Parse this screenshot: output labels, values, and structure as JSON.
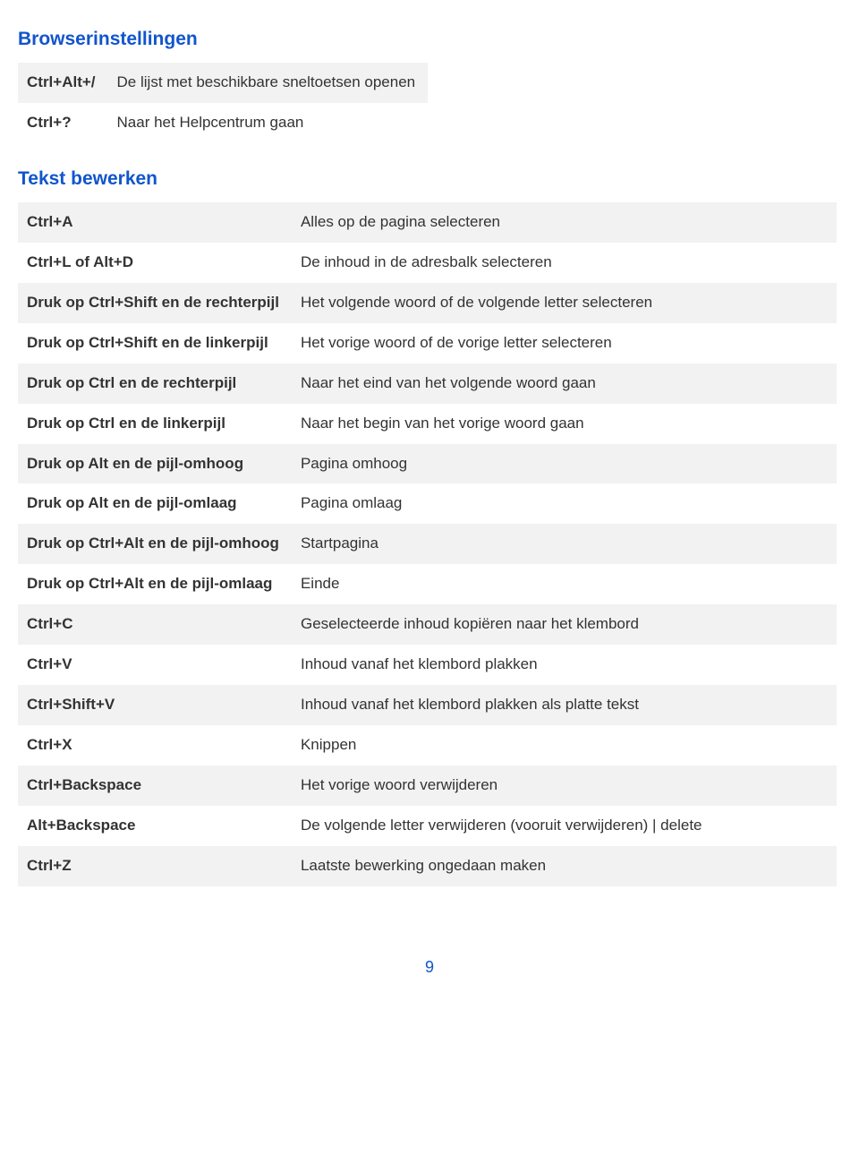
{
  "section1": {
    "title": "Browserinstellingen"
  },
  "table1": {
    "rows": [
      {
        "key": "Ctrl+Alt+/",
        "desc": "De lijst met beschikbare sneltoetsen openen"
      },
      {
        "key": "Ctrl+?",
        "desc": "Naar het Helpcentrum gaan"
      }
    ]
  },
  "section2": {
    "title": "Tekst bewerken"
  },
  "table2": {
    "rows": [
      {
        "key": "Ctrl+A",
        "desc": "Alles op de pagina selecteren"
      },
      {
        "key": "Ctrl+L of Alt+D",
        "desc": "De inhoud in de adresbalk selecteren"
      },
      {
        "key": "Druk op Ctrl+Shift en de rechterpijl",
        "desc": "Het volgende woord of de volgende letter selecteren"
      },
      {
        "key": "Druk op Ctrl+Shift en de linkerpijl",
        "desc": "Het vorige woord of de vorige letter selecteren"
      },
      {
        "key": "Druk op Ctrl en de rechterpijl",
        "desc": "Naar het eind van het volgende woord gaan"
      },
      {
        "key": "Druk op Ctrl en de linkerpijl",
        "desc": "Naar het begin van het vorige woord gaan"
      },
      {
        "key": "Druk op Alt en de pijl-omhoog",
        "desc": "Pagina omhoog"
      },
      {
        "key": "Druk op Alt en de pijl-omlaag",
        "desc": "Pagina omlaag"
      },
      {
        "key": "Druk op Ctrl+Alt en de pijl-omhoog",
        "desc": "Startpagina"
      },
      {
        "key": "Druk op Ctrl+Alt en de pijl-omlaag",
        "desc": "Einde"
      },
      {
        "key": "Ctrl+C",
        "desc": "Geselecteerde inhoud kopiëren naar het klembord"
      },
      {
        "key": "Ctrl+V",
        "desc": "Inhoud vanaf het klembord plakken"
      },
      {
        "key": "Ctrl+Shift+V",
        "desc": "Inhoud vanaf het klembord plakken als platte tekst"
      },
      {
        "key": "Ctrl+X",
        "desc": "Knippen"
      },
      {
        "key": "Ctrl+Backspace",
        "desc": "Het vorige woord verwijderen"
      },
      {
        "key": "Alt+Backspace",
        "desc": "De volgende letter verwijderen (vooruit verwijderen) | delete"
      },
      {
        "key": "Ctrl+Z",
        "desc": "Laatste bewerking ongedaan maken"
      }
    ]
  },
  "page": {
    "number": "9"
  },
  "style": {
    "heading_color": "#1155cc",
    "text_color": "#333333",
    "row_alt_bg": "#f2f2f2",
    "row_bg": "#ffffff",
    "body_font_size": 17,
    "heading_font_size": 21
  }
}
